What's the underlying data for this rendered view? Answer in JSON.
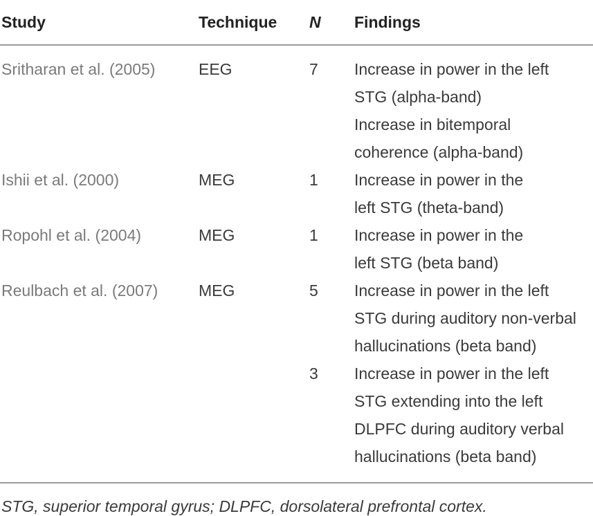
{
  "table": {
    "header": [
      "Study",
      "Technique",
      "N",
      "Findings"
    ],
    "rows": [
      {
        "study": "Sritharan et al. (2005)",
        "technique": "EEG",
        "n": "7",
        "findings": [
          [
            "Increase in power in the left",
            "STG (alpha-band)"
          ],
          [
            "Increase in bitemporal",
            "coherence (alpha-band)"
          ]
        ]
      },
      {
        "study": "Ishii et al. (2000)",
        "technique": "MEG",
        "n": "1",
        "findings": [
          [
            "Increase in power in the",
            "left STG (theta-band)"
          ]
        ]
      },
      {
        "study": "Ropohl et al. (2004)",
        "technique": "MEG",
        "n": "1",
        "findings": [
          [
            "Increase in power in the",
            "left STG (beta band)"
          ]
        ]
      },
      {
        "study": "Reulbach et al. (2007)",
        "technique": "MEG",
        "n": "5",
        "findings": [
          [
            "Increase in power in the left",
            "STG during auditory non-verbal",
            "hallucinations (beta band)"
          ]
        ]
      },
      {
        "n": "3",
        "findings": [
          [
            "Increase in power in the left",
            "STG extending into the left",
            "DLPFC during auditory verbal",
            "hallucinations (beta band)"
          ]
        ]
      }
    ],
    "footnote": "STG, superior temporal gyrus; DLPFC, dorsolateral prefrontal cortex."
  }
}
